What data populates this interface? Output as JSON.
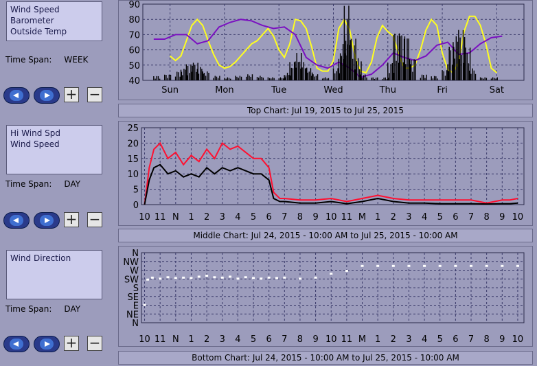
{
  "panels": [
    {
      "list_items": [
        "Wind Speed",
        "Barometer",
        "Outside Temp"
      ],
      "time_span_label": "Time Span:",
      "time_span_value": "WEEK",
      "plus": "+",
      "minus": "−",
      "caption": "Top Chart:  Jul 19, 2015  to  Jul 25, 2015"
    },
    {
      "list_items": [
        "Hi Wind Spd",
        "Wind Speed"
      ],
      "time_span_label": "Time Span:",
      "time_span_value": "DAY",
      "plus": "+",
      "minus": "−",
      "caption": "Middle Chart:  Jul 24, 2015 - 10:00 AM  to  Jul 25, 2015 - 10:00 AM"
    },
    {
      "list_items": [
        "Wind Direction"
      ],
      "time_span_label": "Time Span:",
      "time_span_value": "DAY",
      "plus": "+",
      "minus": "−",
      "caption": "Bottom Chart:  Jul 24, 2015 - 10:00 AM  to  Jul 25, 2015 - 10:00 AM"
    }
  ],
  "colors": {
    "plot_bg": "#9c9cbc",
    "grid": "#3a3a6a",
    "wind": "#000000",
    "barometer": "#7a10c0",
    "temperature": "#ffff20",
    "hi_wind": "#ff1030",
    "direction": "#ffffff"
  },
  "chart_data": [
    {
      "type": "line",
      "ylim": [
        40,
        90
      ],
      "yticks": [
        "40",
        "50",
        "60",
        "70",
        "80",
        "90"
      ],
      "xticks": [
        "Sun",
        "Mon",
        "Tue",
        "Wed",
        "Thu",
        "Fri",
        "Sat"
      ],
      "grid": true,
      "series": [
        {
          "key": "temperature",
          "style": "line",
          "x": [
            0,
            0.1,
            0.2,
            0.3,
            0.4,
            0.5,
            0.6,
            0.7,
            0.8,
            0.9,
            1.0,
            1.1,
            1.2,
            1.3,
            1.4,
            1.5,
            1.6,
            1.7,
            1.8,
            1.9,
            2.0,
            2.1,
            2.2,
            2.3,
            2.4,
            2.5,
            2.6,
            2.7,
            2.8,
            2.9,
            3.0,
            3.1,
            3.2,
            3.3,
            3.4,
            3.5,
            3.6,
            3.7,
            3.8,
            3.9,
            4.0,
            4.1,
            4.2,
            4.3,
            4.4,
            4.5,
            4.6,
            4.7,
            4.8,
            4.9,
            5.0,
            5.1,
            5.2,
            5.3,
            5.4,
            5.5,
            5.6,
            5.7,
            5.8,
            5.9,
            6.0
          ],
          "y": [
            56,
            53,
            56,
            66,
            76,
            80,
            76,
            66,
            57,
            50,
            48,
            49,
            52,
            56,
            60,
            64,
            66,
            70,
            74,
            69,
            60,
            55,
            64,
            80,
            79,
            74,
            62,
            48,
            46,
            46,
            53,
            74,
            80,
            73,
            55,
            46,
            45,
            52,
            68,
            76,
            72,
            69,
            57,
            48,
            48,
            50,
            60,
            73,
            80,
            76,
            58,
            47,
            45,
            52,
            72,
            82,
            82,
            76,
            64,
            48,
            45
          ]
        },
        {
          "key": "barometer",
          "style": "line",
          "x": [
            -0.3,
            -0.1,
            0.1,
            0.3,
            0.5,
            0.7,
            0.9,
            1.1,
            1.3,
            1.5,
            1.7,
            1.9,
            2.1,
            2.3,
            2.5,
            2.7,
            2.9,
            3.1,
            3.3,
            3.5,
            3.7,
            3.9,
            4.1,
            4.3,
            4.5,
            4.7,
            4.9,
            5.1,
            5.3,
            5.5,
            5.7,
            5.9,
            6.1
          ],
          "y": [
            67,
            67,
            70,
            70,
            64,
            66,
            75,
            78,
            80,
            79,
            76,
            74,
            75,
            70,
            55,
            50,
            48,
            52,
            48,
            42,
            44,
            50,
            58,
            55,
            53,
            56,
            63,
            65,
            57,
            58,
            64,
            68,
            69
          ]
        },
        {
          "key": "wind",
          "style": "spikes",
          "x": [
            -0.3,
            -0.1,
            0.1,
            0.2,
            0.3,
            0.4,
            0.5,
            0.6,
            0.8,
            1.0,
            1.2,
            1.4,
            1.6,
            1.8,
            2.0,
            2.1,
            2.2,
            2.3,
            2.4,
            2.5,
            2.6,
            2.8,
            3.0,
            3.1,
            3.15,
            3.2,
            3.3,
            3.4,
            3.5,
            3.7,
            3.9,
            4.0,
            4.1,
            4.2,
            4.3,
            4.4,
            4.6,
            4.8,
            5.0,
            5.1,
            5.2,
            5.3,
            5.4,
            5.5,
            5.7,
            5.9
          ],
          "y": [
            43,
            44,
            46,
            48,
            51,
            52,
            49,
            46,
            43,
            42,
            43,
            44,
            43,
            42,
            42,
            45,
            52,
            58,
            52,
            48,
            44,
            42,
            48,
            58,
            70,
            90,
            68,
            55,
            44,
            42,
            42,
            52,
            73,
            72,
            70,
            55,
            44,
            43,
            47,
            63,
            70,
            74,
            62,
            48,
            42,
            42
          ]
        }
      ]
    },
    {
      "type": "line",
      "ylim": [
        0,
        25
      ],
      "yticks": [
        "0",
        "5",
        "10",
        "15",
        "20",
        "25"
      ],
      "xticks": [
        "10",
        "11",
        "N",
        "1",
        "2",
        "3",
        "4",
        "5",
        "6",
        "7",
        "8",
        "9",
        "10",
        "11",
        "M",
        "1",
        "2",
        "3",
        "4",
        "5",
        "6",
        "7",
        "8",
        "9",
        "10"
      ],
      "grid": true,
      "series": [
        {
          "key": "hi_wind",
          "style": "line",
          "x": [
            0,
            0.3,
            0.6,
            1,
            1.5,
            2,
            2.5,
            3,
            3.5,
            4,
            4.5,
            5,
            5.5,
            6,
            6.5,
            7,
            7.5,
            8,
            8.3,
            8.7,
            9,
            10,
            11,
            12,
            13,
            14,
            15,
            16,
            17,
            18,
            19,
            20,
            21,
            22,
            23,
            23.5,
            24
          ],
          "y": [
            0,
            12,
            18,
            20,
            15,
            17,
            13,
            16,
            14,
            18,
            15,
            20,
            18,
            19,
            17,
            15,
            15,
            12,
            4,
            2,
            2,
            1.5,
            1.5,
            2,
            1,
            2,
            3,
            2,
            1.5,
            1.5,
            1.5,
            1.5,
            1.5,
            0.5,
            1.5,
            1.5,
            2
          ]
        },
        {
          "key": "wind",
          "style": "line",
          "x": [
            0,
            0.3,
            0.6,
            1,
            1.5,
            2,
            2.5,
            3,
            3.5,
            4,
            4.5,
            5,
            5.5,
            6,
            6.5,
            7,
            7.5,
            8,
            8.3,
            8.7,
            9,
            10,
            11,
            12,
            13,
            14,
            15,
            16,
            17,
            18,
            19,
            20,
            21,
            22,
            23,
            23.5,
            24
          ],
          "y": [
            0,
            8,
            12,
            13,
            10,
            11,
            9,
            10,
            9,
            12,
            10,
            12,
            11,
            12,
            11,
            10,
            10,
            8,
            2,
            1,
            1,
            0.5,
            0.5,
            1,
            0.3,
            1,
            2,
            1,
            0.5,
            0.5,
            0.3,
            0.3,
            0.3,
            0.2,
            0.3,
            0.3,
            0.5
          ]
        }
      ]
    },
    {
      "type": "scatter",
      "yticks": [
        "N",
        "NE",
        "E",
        "SE",
        "S",
        "SW",
        "W",
        "NW",
        "N"
      ],
      "xticks": [
        "10",
        "11",
        "N",
        "1",
        "2",
        "3",
        "4",
        "5",
        "6",
        "7",
        "8",
        "9",
        "10",
        "11",
        "M",
        "1",
        "2",
        "3",
        "4",
        "5",
        "6",
        "7",
        "8",
        "9",
        "10"
      ],
      "grid": true,
      "series": [
        {
          "key": "direction",
          "x": [
            0,
            0.2,
            0.5,
            1,
            1.5,
            2,
            2.5,
            3,
            3.5,
            4,
            4.5,
            5,
            5.5,
            6,
            6.5,
            7,
            7.5,
            8,
            8.5,
            9,
            10,
            11,
            12,
            13,
            14,
            15,
            16,
            17,
            18,
            19,
            20,
            21,
            22,
            23,
            24
          ],
          "y": [
            90,
            220,
            230,
            225,
            232,
            228,
            230,
            228,
            235,
            240,
            232,
            230,
            235,
            225,
            232,
            228,
            225,
            230,
            228,
            230,
            225,
            230,
            250,
            265,
            290,
            290,
            290,
            290,
            290,
            290,
            290,
            290,
            290,
            290,
            290
          ]
        }
      ]
    }
  ]
}
